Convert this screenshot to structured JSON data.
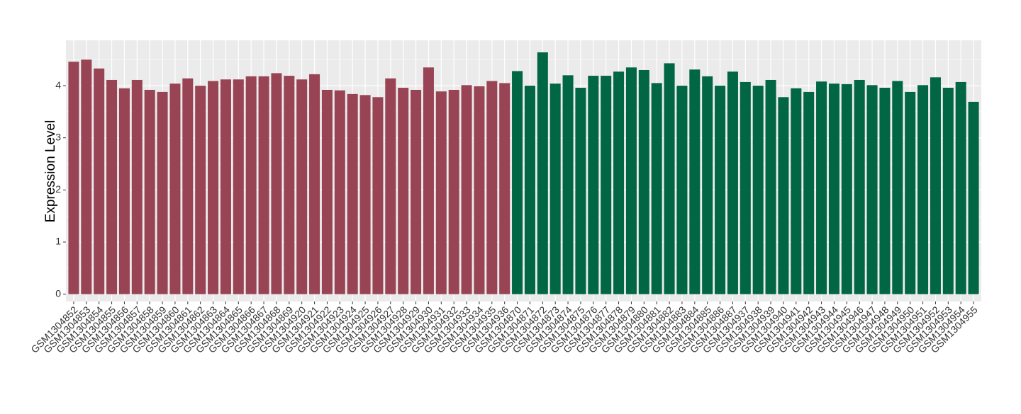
{
  "chart_data": {
    "type": "bar",
    "y_label": "Expression Level",
    "categories": [
      "GSM1304852",
      "GSM1304853",
      "GSM1304854",
      "GSM1304855",
      "GSM1304856",
      "GSM1304857",
      "GSM1304858",
      "GSM1304859",
      "GSM1304860",
      "GSM1304861",
      "GSM1304862",
      "GSM1304863",
      "GSM1304864",
      "GSM1304865",
      "GSM1304866",
      "GSM1304867",
      "GSM1304868",
      "GSM1304869",
      "GSM1304920",
      "GSM1304921",
      "GSM1304922",
      "GSM1304923",
      "GSM1304924",
      "GSM1304925",
      "GSM1304926",
      "GSM1304927",
      "GSM1304928",
      "GSM1304929",
      "GSM1304930",
      "GSM1304931",
      "GSM1304932",
      "GSM1304933",
      "GSM1304934",
      "GSM1304935",
      "GSM1304936",
      "GSM1304870",
      "GSM1304871",
      "GSM1304872",
      "GSM1304873",
      "GSM1304874",
      "GSM1304875",
      "GSM1304876",
      "GSM1304877",
      "GSM1304878",
      "GSM1304879",
      "GSM1304880",
      "GSM1304881",
      "GSM1304882",
      "GSM1304883",
      "GSM1304884",
      "GSM1304885",
      "GSM1304886",
      "GSM1304887",
      "GSM1304937",
      "GSM1304938",
      "GSM1304939",
      "GSM1304940",
      "GSM1304941",
      "GSM1304942",
      "GSM1304943",
      "GSM1304944",
      "GSM1304945",
      "GSM1304946",
      "GSM1304947",
      "GSM1304948",
      "GSM1304949",
      "GSM1304950",
      "GSM1304951",
      "GSM1304952",
      "GSM1304953",
      "GSM1304954",
      "GSM1304955"
    ],
    "values": [
      4.46,
      4.5,
      4.33,
      4.11,
      3.95,
      4.11,
      3.92,
      3.88,
      4.04,
      4.14,
      4.0,
      4.09,
      4.12,
      4.12,
      4.18,
      4.18,
      4.24,
      4.19,
      4.12,
      4.22,
      3.92,
      3.91,
      3.84,
      3.82,
      3.78,
      4.14,
      3.96,
      3.92,
      4.35,
      3.89,
      3.92,
      4.01,
      3.99,
      4.09,
      4.05,
      4.28,
      4.0,
      4.64,
      4.04,
      4.2,
      3.96,
      4.19,
      4.19,
      4.27,
      4.35,
      4.3,
      4.05,
      4.43,
      4.0,
      4.31,
      4.18,
      4.0,
      4.27,
      4.07,
      4.0,
      4.11,
      3.78,
      3.95,
      3.88,
      4.08,
      4.04,
      4.03,
      4.11,
      4.01,
      3.96,
      4.09,
      3.88,
      4.01,
      4.16,
      3.96,
      4.07,
      3.69
    ],
    "colors": [
      "#994455",
      "#994455",
      "#994455",
      "#994455",
      "#994455",
      "#994455",
      "#994455",
      "#994455",
      "#994455",
      "#994455",
      "#994455",
      "#994455",
      "#994455",
      "#994455",
      "#994455",
      "#994455",
      "#994455",
      "#994455",
      "#994455",
      "#994455",
      "#994455",
      "#994455",
      "#994455",
      "#994455",
      "#994455",
      "#994455",
      "#994455",
      "#994455",
      "#994455",
      "#994455",
      "#994455",
      "#994455",
      "#994455",
      "#994455",
      "#994455",
      "#006644",
      "#006644",
      "#006644",
      "#006644",
      "#006644",
      "#006644",
      "#006644",
      "#006644",
      "#006644",
      "#006644",
      "#006644",
      "#006644",
      "#006644",
      "#006644",
      "#006644",
      "#006644",
      "#006644",
      "#006644",
      "#006644",
      "#006644",
      "#006644",
      "#006644",
      "#006644",
      "#006644",
      "#006644",
      "#006644",
      "#006644",
      "#006644",
      "#006644",
      "#006644",
      "#006644",
      "#006644",
      "#006644",
      "#006644",
      "#006644",
      "#006644",
      "#006644"
    ],
    "ylim": [
      -0.14,
      4.87
    ],
    "yticks": [
      0,
      1,
      2,
      3,
      4
    ],
    "grid": true
  }
}
